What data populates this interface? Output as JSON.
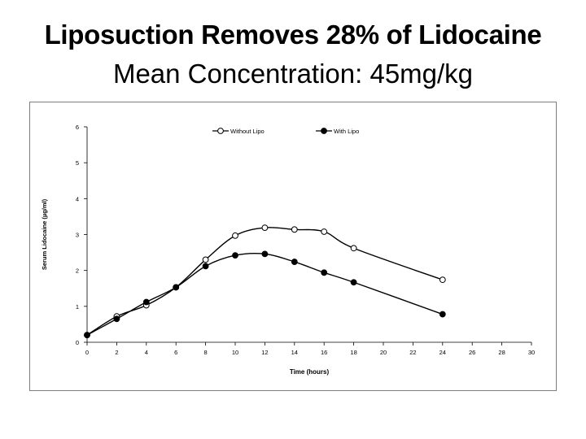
{
  "slide": {
    "title": "Liposuction Removes 28% of Lidocaine",
    "subtitle": "Mean Concentration: 45mg/kg"
  },
  "chart_data": {
    "type": "line",
    "xlabel": "Time (hours)",
    "ylabel": "Serum Lidocaine (µg/ml)",
    "xlim": [
      0,
      30
    ],
    "ylim": [
      0,
      6
    ],
    "xticks": [
      0,
      2,
      4,
      6,
      8,
      10,
      12,
      14,
      16,
      18,
      20,
      22,
      24,
      26,
      28,
      30
    ],
    "yticks": [
      0,
      1,
      2,
      3,
      4,
      5,
      6
    ],
    "grid": false,
    "legend": "top",
    "series": [
      {
        "name": "Without Lipo",
        "marker": "open-circle",
        "color": "#000000",
        "x": [
          0,
          2,
          4,
          6,
          8,
          10,
          12,
          14,
          16,
          18,
          24
        ],
        "y": [
          0.2,
          0.72,
          1.03,
          1.53,
          2.3,
          2.97,
          3.19,
          3.14,
          3.08,
          2.62,
          1.74
        ]
      },
      {
        "name": "With Lipo",
        "marker": "filled-circle",
        "color": "#000000",
        "x": [
          0,
          2,
          4,
          6,
          8,
          10,
          12,
          14,
          16,
          18,
          24
        ],
        "y": [
          0.2,
          0.65,
          1.12,
          1.53,
          2.12,
          2.42,
          2.46,
          2.24,
          1.94,
          1.67,
          0.78
        ]
      }
    ]
  }
}
